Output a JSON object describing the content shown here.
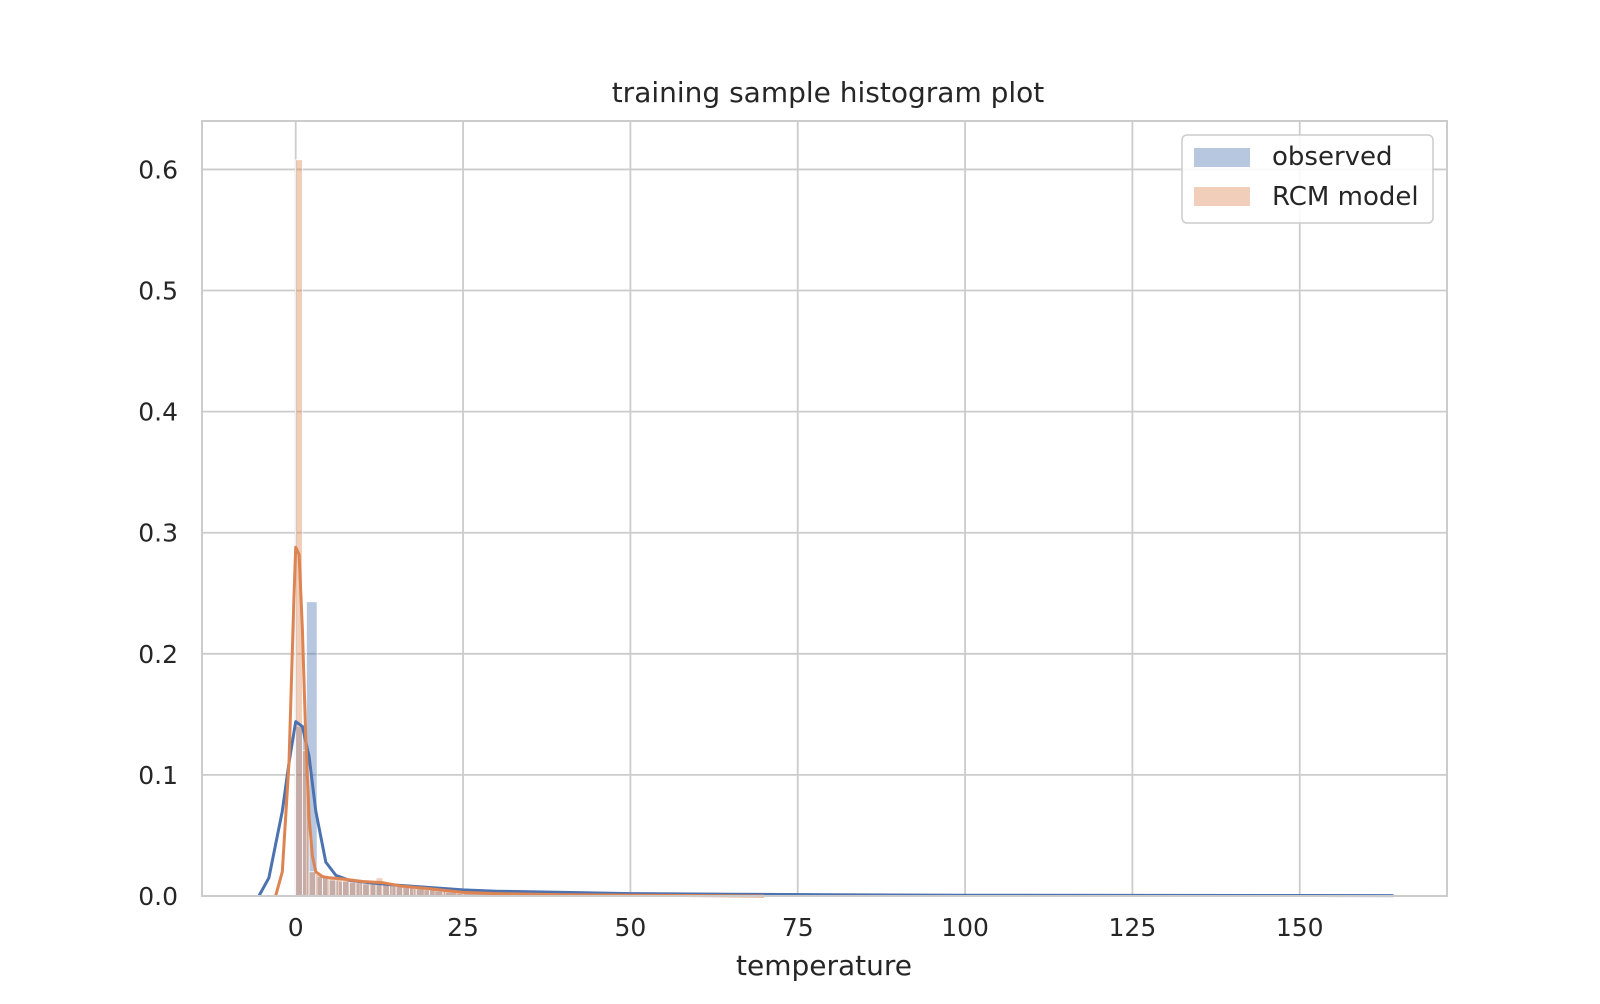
{
  "chart_data": {
    "type": "bar",
    "title": "training sample histogram plot",
    "xlabel": "temperature",
    "ylabel": "",
    "xlim": [
      -14,
      172
    ],
    "ylim": [
      0,
      0.64
    ],
    "xticks": [
      0,
      25,
      50,
      75,
      100,
      125,
      150
    ],
    "xtick_labels": [
      "0",
      "25",
      "50",
      "75",
      "100",
      "125",
      "150"
    ],
    "yticks": [
      0.0,
      0.1,
      0.2,
      0.3,
      0.4,
      0.5,
      0.6
    ],
    "ytick_labels": [
      "0.0",
      "0.1",
      "0.2",
      "0.3",
      "0.4",
      "0.5",
      "0.6"
    ],
    "grid": true,
    "legend_position": "top-right",
    "series": [
      {
        "name": "observed",
        "color": "#4c72b0",
        "hist_bin_edges": [
          0.0,
          1.6,
          3.2,
          4.8,
          6.4,
          8.0,
          9.6,
          11.2,
          12.8,
          14.4,
          16.0,
          17.6,
          19.2,
          20.8,
          22.4,
          24.0,
          32.0,
          48.0,
          64.0,
          96.0,
          128.0,
          164.0
        ],
        "hist_values": [
          0.14,
          0.243,
          0.016,
          0.013,
          0.012,
          0.011,
          0.011,
          0.01,
          0.009,
          0.008,
          0.007,
          0.006,
          0.005,
          0.004,
          0.003,
          0.002,
          0.001,
          0.0006,
          0.0004,
          0.0003,
          0.0002
        ],
        "kde_x": [
          -5.5,
          -4,
          -2,
          -1,
          0,
          1,
          2,
          3,
          4.5,
          6,
          8,
          11,
          15,
          20,
          25,
          30,
          40,
          50,
          65,
          80,
          100,
          125,
          150,
          164
        ],
        "kde_y": [
          0.0,
          0.015,
          0.07,
          0.11,
          0.144,
          0.14,
          0.115,
          0.07,
          0.028,
          0.017,
          0.013,
          0.011,
          0.009,
          0.007,
          0.005,
          0.004,
          0.003,
          0.002,
          0.0015,
          0.001,
          0.0007,
          0.0005,
          0.0004,
          0.0003
        ]
      },
      {
        "name": "RCM model",
        "color": "#dd8452",
        "hist_bin_edges": [
          0.0,
          1.0,
          2.0,
          3.0,
          4.0,
          5.0,
          6.0,
          7.0,
          8.0,
          9.0,
          10.0,
          11.0,
          12.0,
          13.0,
          14.0,
          15.0,
          16.0,
          17.0,
          18.0,
          20.0,
          22.0,
          25.0,
          30.0,
          40.0,
          55.0,
          70.0
        ],
        "hist_values": [
          0.608,
          0.12,
          0.02,
          0.018,
          0.016,
          0.015,
          0.014,
          0.013,
          0.012,
          0.011,
          0.01,
          0.012,
          0.015,
          0.011,
          0.009,
          0.008,
          0.008,
          0.007,
          0.006,
          0.005,
          0.004,
          0.003,
          0.002,
          0.001,
          0.0005
        ],
        "kde_x": [
          -3,
          -2,
          -1,
          -0.3,
          0,
          0.5,
          1,
          1.5,
          2,
          2.5,
          3,
          4,
          5,
          7,
          10,
          13,
          16,
          20,
          25,
          30,
          40,
          55,
          70
        ],
        "kde_y": [
          0.0,
          0.02,
          0.11,
          0.24,
          0.288,
          0.282,
          0.22,
          0.13,
          0.065,
          0.033,
          0.02,
          0.016,
          0.015,
          0.014,
          0.012,
          0.011,
          0.008,
          0.006,
          0.003,
          0.002,
          0.001,
          0.0005,
          0.0
        ]
      }
    ]
  }
}
